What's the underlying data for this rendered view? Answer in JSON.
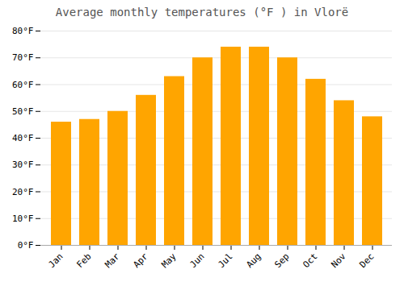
{
  "chart_data": {
    "type": "bar",
    "title": "Average monthly temperatures (°F ) in Vlorë",
    "categories": [
      "Jan",
      "Feb",
      "Mar",
      "Apr",
      "May",
      "Jun",
      "Jul",
      "Aug",
      "Sep",
      "Oct",
      "Nov",
      "Dec"
    ],
    "values": [
      46,
      47,
      50,
      56,
      63,
      70,
      74,
      74,
      70,
      62,
      54,
      48
    ],
    "color": "#FFA500",
    "ylim": [
      0,
      80
    ],
    "yticks": [
      {
        "value": 0,
        "label": "0°F"
      },
      {
        "value": 10,
        "label": "10°F"
      },
      {
        "value": 20,
        "label": "20°F"
      },
      {
        "value": 30,
        "label": "30°F"
      },
      {
        "value": 40,
        "label": "40°F"
      },
      {
        "value": 50,
        "label": "50°F"
      },
      {
        "value": 60,
        "label": "60°F"
      },
      {
        "value": 70,
        "label": "70°F"
      },
      {
        "value": 80,
        "label": "80°F"
      }
    ],
    "grid": true
  }
}
